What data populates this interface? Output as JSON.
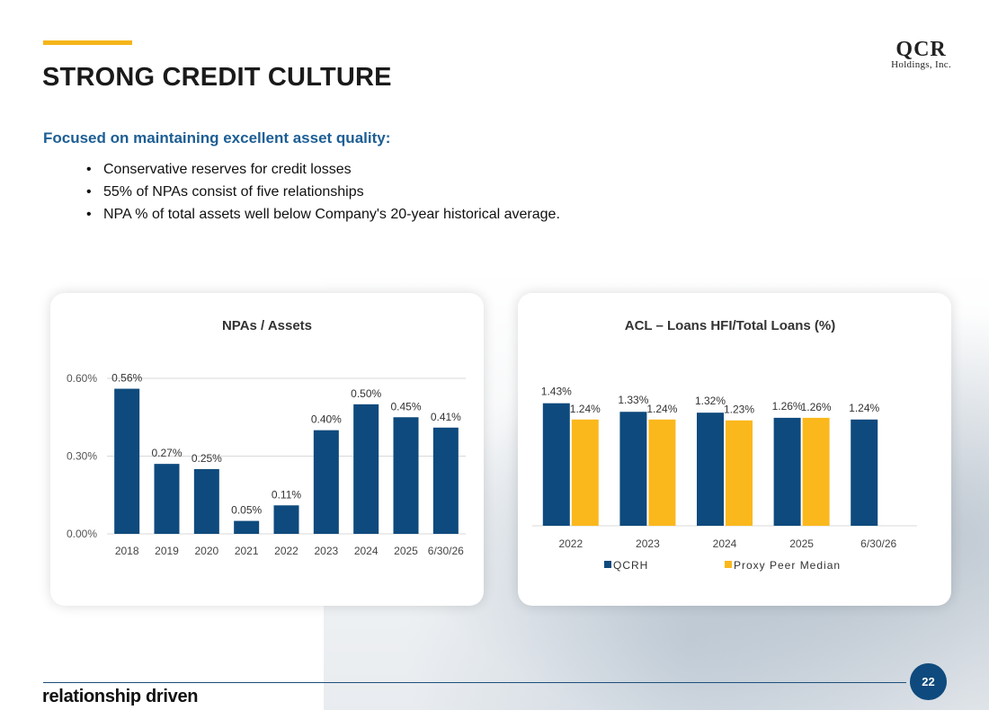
{
  "header": {
    "title": "STRONG CREDIT CULTURE",
    "logo_main": "QCR",
    "logo_sub": "Holdings, Inc."
  },
  "intro": {
    "subtitle": "Focused on maintaining excellent asset quality:",
    "bullets": [
      "Conservative reserves for credit losses",
      "55% of NPAs consist of five relationships",
      "NPA % of total assets well below Company's 20-year historical average."
    ]
  },
  "colors": {
    "accent": "#f5b51a",
    "navy": "#0e4a7d",
    "subtitle_blue": "#1d5e94",
    "gold": "#fbb81c"
  },
  "chart_data": [
    {
      "type": "bar",
      "title": "NPAs / Assets",
      "categories": [
        "2018",
        "2019",
        "2020",
        "2021",
        "2022",
        "2023",
        "2024",
        "2025",
        "6/30/26"
      ],
      "values": [
        0.56,
        0.27,
        0.25,
        0.05,
        0.11,
        0.4,
        0.5,
        0.45,
        0.41
      ],
      "data_labels": [
        "0.56%",
        "0.27%",
        "0.25%",
        "0.05%",
        "0.11%",
        "0.40%",
        "0.50%",
        "0.45%",
        "0.41%"
      ],
      "yticks": [
        0,
        0.3,
        0.6
      ],
      "ytick_labels": [
        "0.00%",
        "0.30%",
        "0.60%"
      ],
      "ylim": [
        0,
        0.6
      ],
      "grid": true,
      "color": "#0e4a7d"
    },
    {
      "type": "bar",
      "title": "ACL – Loans HFI/Total Loans (%)",
      "categories": [
        "2022",
        "2023",
        "2024",
        "2025",
        "6/30/26"
      ],
      "series": [
        {
          "name": "QCRH",
          "color": "#0e4a7d",
          "values": [
            1.43,
            1.33,
            1.32,
            1.26,
            1.24
          ],
          "labels": [
            "1.43%",
            "1.33%",
            "1.32%",
            "1.26%",
            "1.24%"
          ]
        },
        {
          "name": "Proxy Peer Median",
          "color": "#fbb81c",
          "values": [
            1.24,
            1.24,
            1.23,
            1.26,
            null
          ],
          "labels": [
            "1.24%",
            "1.24%",
            "1.23%",
            "1.26%",
            null
          ]
        }
      ],
      "ylim": [
        0,
        1.5
      ],
      "grid": false,
      "legend": "bottom"
    }
  ],
  "footer": {
    "tagline": "relationship driven",
    "page_number": "22"
  }
}
